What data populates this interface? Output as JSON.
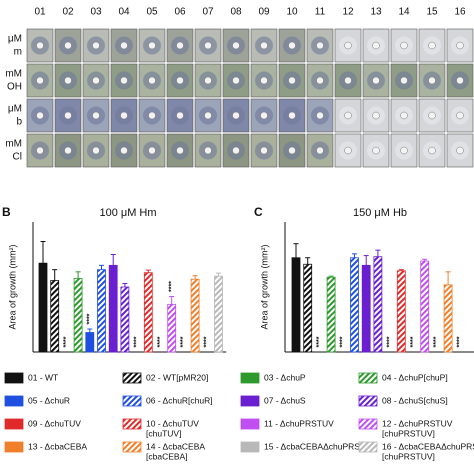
{
  "plate_panel": {
    "columns": [
      "01",
      "02",
      "03",
      "04",
      "05",
      "06",
      "07",
      "08",
      "09",
      "10",
      "11",
      "12",
      "13",
      "14",
      "15",
      "16"
    ],
    "rows": [
      [
        "μM",
        "m"
      ],
      [
        "mM",
        "OH"
      ],
      [
        "μM",
        "b"
      ],
      [
        "mM",
        "Cl"
      ]
    ]
  },
  "legend": [
    {
      "name": "01 - WT",
      "color": "#111111",
      "hatched": false
    },
    {
      "name": "02 - WT[pMR20]",
      "color": "#111111",
      "hatched": true
    },
    {
      "name": "03 - ΔchuP",
      "color": "#2e9a2e",
      "hatched": false
    },
    {
      "name": "04 - ΔchuP[chuP]",
      "color": "#2e9a2e",
      "hatched": true
    },
    {
      "name": "05 - ΔchuR",
      "color": "#1f4fe0",
      "hatched": false
    },
    {
      "name": "06 - ΔchuR[chuR]",
      "color": "#1f4fe0",
      "hatched": true
    },
    {
      "name": "07 - ΔchuS",
      "color": "#6a1fd0",
      "hatched": false
    },
    {
      "name": "08 - ΔchuS[chuS]",
      "color": "#6a1fd0",
      "hatched": true
    },
    {
      "name": "09 - ΔchuTUV",
      "color": "#e02a2a",
      "hatched": false
    },
    {
      "name": "10 - ΔchuTUV",
      "sub": "[chuTUV]",
      "color": "#e02a2a",
      "hatched": true
    },
    {
      "name": "11 - ΔchuPRSTUV",
      "color": "#c04ef0",
      "hatched": false
    },
    {
      "name": "12 - ΔchuPRSTUV",
      "sub": "[chuPRSTUV]",
      "color": "#c04ef0",
      "hatched": true
    },
    {
      "name": "13 - ΔcbaCEBA",
      "color": "#f07f2a",
      "hatched": false
    },
    {
      "name": "14 - ΔcbaCEBA",
      "sub": "[cbaCEBA]",
      "color": "#f07f2a",
      "hatched": true
    },
    {
      "name": "15 - ΔcbaCEBAΔchuPRSTUV",
      "color": "#b8b8b8",
      "hatched": false
    },
    {
      "name": "16 - ΔcbaCEBAΔchuPRSTUV",
      "sub": "[chuPRSTUV]",
      "color": "#b8b8b8",
      "hatched": true
    }
  ],
  "chart_data": [
    {
      "type": "bar",
      "panel_label": "B",
      "title": "100 μM Hm",
      "y_label": "Area of growth (mm²)",
      "values": [
        205,
        165,
        0,
        170,
        45,
        190,
        200,
        150,
        0,
        183,
        0,
        110,
        0,
        168,
        0,
        175
      ],
      "errors": [
        50,
        25,
        0,
        15,
        8,
        10,
        25,
        8,
        0,
        6,
        0,
        18,
        0,
        8,
        0,
        7
      ],
      "significance": [
        null,
        null,
        "****",
        null,
        "****",
        null,
        null,
        null,
        "****",
        null,
        "****",
        "****",
        "****",
        null,
        "****",
        null
      ],
      "ylim": [
        0,
        300
      ]
    },
    {
      "type": "bar",
      "panel_label": "C",
      "title": "150 μM Hb",
      "y_label": "Area of growth (mm²)",
      "values": [
        435,
        405,
        0,
        345,
        0,
        435,
        400,
        440,
        0,
        375,
        0,
        420,
        0,
        310,
        0,
        0
      ],
      "errors": [
        65,
        30,
        0,
        5,
        0,
        18,
        45,
        30,
        0,
        5,
        0,
        8,
        0,
        60,
        0,
        0
      ],
      "significance": [
        null,
        null,
        "****",
        null,
        "****",
        null,
        null,
        null,
        "****",
        null,
        "****",
        null,
        "****",
        null,
        "****",
        null
      ],
      "ylim": [
        0,
        600
      ]
    }
  ]
}
